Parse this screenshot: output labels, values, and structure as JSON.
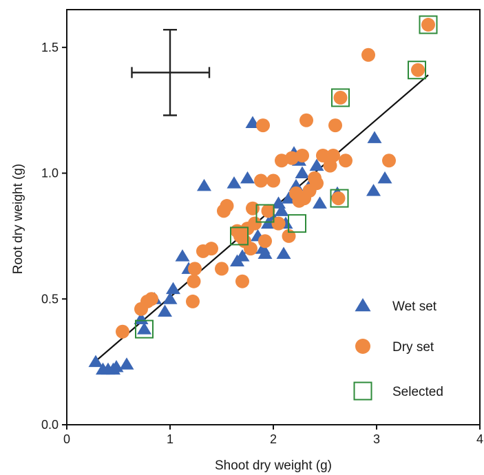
{
  "chart_data": {
    "type": "scatter",
    "xlabel": "Shoot dry weight (g)",
    "ylabel": "Root dry weight (g)",
    "xlim": [
      0,
      4
    ],
    "ylim": [
      0,
      1.65
    ],
    "xticks": [
      "0",
      "1",
      "2",
      "3",
      "4"
    ],
    "yticks": [
      "0.0",
      "0.5",
      "1.0",
      "1.5"
    ],
    "legend_position": "bottom-right",
    "colors": {
      "wet": "#3a66b4",
      "dry": "#f08a42",
      "selected": "#2e8b3a",
      "line": "#111111"
    },
    "legend": [
      {
        "key": "wet",
        "label": "Wet set"
      },
      {
        "key": "dry",
        "label": "Dry set"
      },
      {
        "key": "selected",
        "label": "Selected"
      }
    ],
    "error_bar": {
      "x": 1.0,
      "y": 1.4,
      "x_minus": 0.37,
      "x_plus": 0.38,
      "y_minus": 0.17,
      "y_plus": 0.17
    },
    "regression_line": {
      "x": [
        0.3,
        3.5
      ],
      "y": [
        0.26,
        1.39
      ]
    },
    "series": [
      {
        "name": "Wet set",
        "marker": "triangle",
        "x": [
          0.28,
          0.35,
          0.4,
          0.45,
          0.48,
          0.58,
          0.72,
          0.75,
          0.85,
          0.95,
          1.0,
          1.03,
          1.12,
          1.18,
          1.33,
          1.62,
          1.65,
          1.7,
          1.75,
          1.78,
          1.8,
          1.85,
          1.9,
          1.92,
          1.95,
          2.0,
          2.05,
          2.08,
          2.1,
          2.12,
          2.15,
          2.2,
          2.22,
          2.25,
          2.28,
          2.35,
          2.42,
          2.45,
          2.62,
          2.97,
          2.98,
          3.08
        ],
        "y": [
          0.25,
          0.22,
          0.22,
          0.22,
          0.23,
          0.24,
          0.42,
          0.38,
          0.5,
          0.45,
          0.5,
          0.54,
          0.67,
          0.62,
          0.95,
          0.96,
          0.65,
          0.67,
          0.98,
          0.7,
          1.2,
          0.75,
          0.7,
          0.68,
          0.8,
          0.82,
          0.88,
          0.85,
          0.68,
          0.8,
          0.9,
          1.08,
          0.95,
          1.05,
          1.0,
          0.95,
          1.03,
          0.88,
          0.92,
          0.93,
          1.14,
          0.98
        ]
      },
      {
        "name": "Dry set",
        "marker": "circle",
        "x": [
          0.54,
          0.72,
          0.78,
          0.82,
          1.22,
          1.23,
          1.24,
          1.32,
          1.4,
          1.5,
          1.52,
          1.55,
          1.65,
          1.68,
          1.7,
          1.72,
          1.75,
          1.78,
          1.8,
          1.82,
          1.88,
          1.9,
          1.92,
          1.95,
          2.0,
          2.05,
          2.08,
          2.15,
          2.18,
          2.22,
          2.25,
          2.28,
          2.3,
          2.32,
          2.35,
          2.4,
          2.42,
          2.48,
          2.55,
          2.58,
          2.6,
          2.63,
          2.65,
          2.7,
          2.92,
          3.12,
          3.4,
          3.5
        ],
        "y": [
          0.37,
          0.46,
          0.49,
          0.5,
          0.49,
          0.57,
          0.62,
          0.69,
          0.7,
          0.62,
          0.85,
          0.87,
          0.77,
          0.75,
          0.57,
          0.73,
          0.78,
          0.7,
          0.86,
          0.8,
          0.97,
          1.19,
          0.73,
          0.85,
          0.97,
          0.8,
          1.05,
          0.75,
          1.06,
          0.92,
          0.89,
          1.07,
          0.9,
          1.21,
          0.93,
          0.98,
          0.96,
          1.07,
          1.03,
          1.07,
          1.19,
          0.9,
          1.3,
          1.05,
          1.47,
          1.05,
          1.41,
          1.59
        ]
      },
      {
        "name": "Selected",
        "marker": "square",
        "x": [
          0.75,
          1.67,
          1.92,
          2.23,
          2.64,
          2.65,
          3.39,
          3.5
        ],
        "y": [
          0.38,
          0.75,
          0.84,
          0.8,
          0.9,
          1.3,
          1.41,
          1.59
        ]
      }
    ]
  }
}
